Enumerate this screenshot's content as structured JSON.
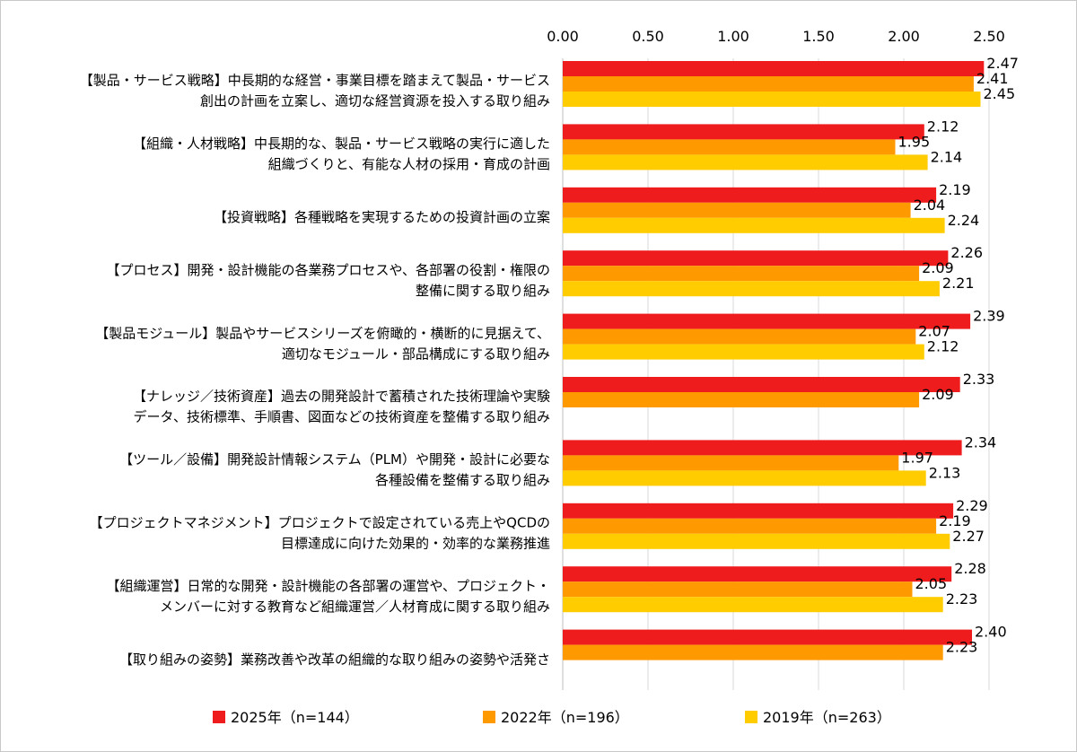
{
  "chart_data": {
    "type": "bar",
    "orientation": "horizontal",
    "title": "",
    "xlabel": "",
    "ylabel": "",
    "xlim": [
      0,
      2.5
    ],
    "ticks": [
      "0.00",
      "0.50",
      "1.00",
      "1.50",
      "2.00",
      "2.50"
    ],
    "grid": true,
    "legend_position": "bottom",
    "categories": [
      [
        "【製品・サービス戦略】中長期的な経営・事業目標を踏まえて製品・サービス",
        "創出の計画を立案し、適切な経営資源を投入する取り組み"
      ],
      [
        "【組織・人材戦略】中長期的な、製品・サービス戦略の実行に適した",
        "組織づくりと、有能な人材の採用・育成の計画"
      ],
      [
        "【投資戦略】各種戦略を実現するための投資計画の立案"
      ],
      [
        "【プロセス】開発・設計機能の各業務プロセスや、各部署の役割・権限の",
        "整備に関する取り組み"
      ],
      [
        "【製品モジュール】製品やサービスシリーズを俯瞰的・横断的に見据えて、",
        "適切なモジュール・部品構成にする取り組み"
      ],
      [
        "【ナレッジ／技術資産】過去の開発設計で蓄積された技術理論や実験",
        "データ、技術標準、手順書、図面などの技術資産を整備する取り組み"
      ],
      [
        "【ツール／設備】開発設計情報システム（PLM）や開発・設計に必要な",
        "各種設備を整備する取り組み"
      ],
      [
        "【プロジェクトマネジメント】プロジェクトで設定されている売上やQCDの",
        "目標達成に向けた効果的・効率的な業務推進"
      ],
      [
        "【組織運営】日常的な開発・設計機能の各部署の運営や、プロジェクト・",
        "メンバーに対する教育など組織運営／人材育成に関する取り組み"
      ],
      [
        "【取り組みの姿勢】業務改善や改革の組織的な取り組みの姿勢や活発さ"
      ]
    ],
    "series": [
      {
        "name": "2025年（n=144）",
        "color": "#ee1c1c",
        "values": [
          2.47,
          2.12,
          2.19,
          2.26,
          2.39,
          2.33,
          2.34,
          2.29,
          2.28,
          2.4
        ],
        "labels": [
          "2.47",
          "2.12",
          "2.19",
          "2.26",
          "2.39",
          "2.33",
          "2.34",
          "2.29",
          "2.28",
          "2.40"
        ]
      },
      {
        "name": "2022年（n=196）",
        "color": "#ff9900",
        "values": [
          2.41,
          1.95,
          2.04,
          2.09,
          2.07,
          2.09,
          1.97,
          2.19,
          2.05,
          2.23
        ],
        "labels": [
          "2.41",
          "1.95",
          "2.04",
          "2.09",
          "2.07",
          "2.09",
          "1.97",
          "2.19",
          "2.05",
          "2.23"
        ]
      },
      {
        "name": "2019年（n=263）",
        "color": "#ffcc00",
        "values": [
          2.45,
          2.14,
          2.24,
          2.21,
          2.12,
          null,
          2.13,
          2.27,
          2.23,
          null
        ],
        "labels": [
          "2.45",
          "2.14",
          "2.24",
          "2.21",
          "2.12",
          "",
          "2.13",
          "2.27",
          "2.23",
          ""
        ]
      }
    ]
  }
}
